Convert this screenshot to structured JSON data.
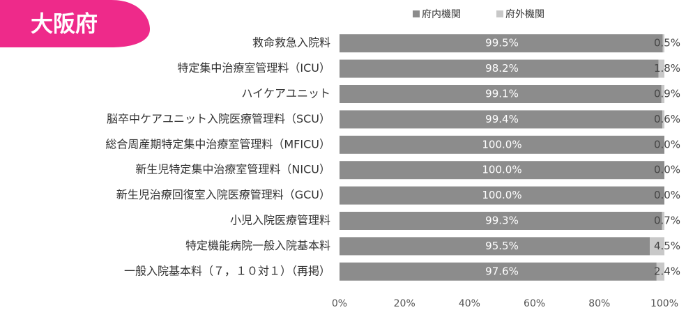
{
  "badge": "大阪府",
  "chart_data": {
    "type": "stacked-barh",
    "categories": [
      "救命救急入院料",
      "特定集中治療室管理料（ICU）",
      "ハイケアユニット",
      "脳卒中ケアユニット入院医療管理料（SCU）",
      "総合周産期特定集中治療室管理料（MFICU）",
      "新生児特定集中治療室管理料（NICU）",
      "新生児治療回復室入院医療管理料（GCU）",
      "小児入院医療管理料",
      "特定機能病院一般入院基本料",
      "一般入院基本料（７，１０対１）（再掲）"
    ],
    "series": [
      {
        "name": "府内機関",
        "color": "#8c8c8c",
        "values": [
          99.5,
          98.2,
          99.1,
          99.4,
          100.0,
          100.0,
          100.0,
          99.3,
          95.5,
          97.6
        ],
        "value_labels": [
          "99.5%",
          "98.2%",
          "99.1%",
          "99.4%",
          "100.0%",
          "100.0%",
          "100.0%",
          "99.3%",
          "95.5%",
          "97.6%"
        ]
      },
      {
        "name": "府外機関",
        "color": "#c8c8c8",
        "values": [
          0.5,
          1.8,
          0.9,
          0.6,
          0.0,
          0.0,
          0.0,
          0.7,
          4.5,
          2.4
        ],
        "value_labels": [
          "0.5%",
          "1.8%",
          "0.9%",
          "0.6%",
          "0.0%",
          "0.0%",
          "0.0%",
          "0.7%",
          "4.5%",
          "2.4%"
        ]
      }
    ],
    "xlim": [
      0,
      100
    ],
    "xticks": [
      {
        "value": 0,
        "label": "0%"
      },
      {
        "value": 20,
        "label": "20%"
      },
      {
        "value": 40,
        "label": "40%"
      },
      {
        "value": 60,
        "label": "60%"
      },
      {
        "value": 80,
        "label": "80%"
      },
      {
        "value": 100,
        "label": "100%"
      }
    ],
    "legend": "top"
  }
}
